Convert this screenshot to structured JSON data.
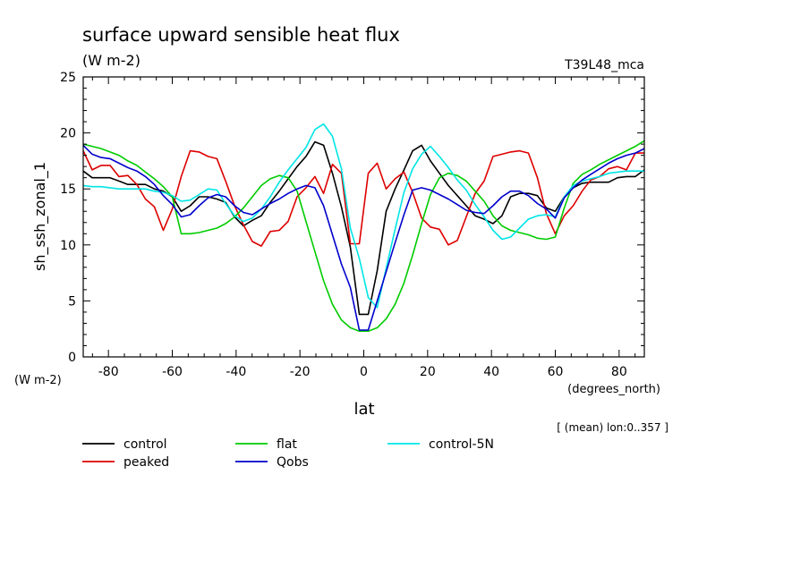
{
  "chart_data": {
    "type": "line",
    "title": "surface upward sensible heat flux",
    "units": "(W m-2)",
    "run_label": "T39L48_mca",
    "ylabel": "sh_ssh_zonal_1",
    "y_units": "(W m-2)",
    "xlabel": "lat",
    "x_units": "(degrees_north)",
    "note": "[ (mean) lon:0..357 ]",
    "xlim": [
      -87.9,
      87.9
    ],
    "ylim": [
      0,
      25
    ],
    "x_ticks": [
      -80,
      -60,
      -40,
      -20,
      0,
      20,
      40,
      60,
      80
    ],
    "y_ticks": [
      0,
      5,
      10,
      15,
      20,
      25
    ],
    "x_tick_labels": [
      "-80",
      "-60",
      "-40",
      "-20",
      "0",
      "20",
      "40",
      "60",
      "80"
    ],
    "y_tick_labels": [
      "0",
      "5",
      "10",
      "15",
      "20",
      "25"
    ],
    "x": [
      -87.9,
      -85.1,
      -82.3,
      -79.5,
      -76.7,
      -73.9,
      -71.1,
      -68.4,
      -65.6,
      -62.8,
      -60.0,
      -57.2,
      -54.4,
      -51.6,
      -48.8,
      -46.0,
      -43.3,
      -40.5,
      -37.7,
      -34.9,
      -32.1,
      -29.3,
      -26.5,
      -23.7,
      -20.9,
      -18.1,
      -15.3,
      -12.6,
      -9.8,
      -7.0,
      -4.2,
      -1.4,
      1.4,
      4.2,
      7.0,
      9.8,
      12.6,
      15.3,
      18.1,
      20.9,
      23.7,
      26.5,
      29.3,
      32.1,
      34.9,
      37.7,
      40.5,
      43.3,
      46.0,
      48.8,
      51.6,
      54.4,
      57.2,
      60.0,
      62.8,
      65.6,
      68.4,
      71.1,
      73.9,
      76.7,
      79.5,
      82.3,
      85.1,
      87.9
    ],
    "series": [
      {
        "name": "control",
        "color": "#000000",
        "values": [
          16.6,
          16.0,
          16.0,
          16.0,
          15.7,
          15.4,
          15.4,
          15.4,
          15.0,
          14.8,
          14.3,
          13.0,
          13.5,
          14.3,
          14.3,
          14.1,
          13.8,
          12.5,
          11.7,
          12.2,
          12.6,
          13.8,
          14.8,
          15.9,
          17.0,
          17.9,
          19.2,
          18.9,
          16.4,
          13.4,
          9.8,
          3.8,
          3.8,
          7.7,
          13.0,
          15.0,
          16.7,
          18.4,
          18.9,
          17.5,
          16.4,
          15.3,
          14.4,
          13.5,
          12.6,
          12.3,
          11.9,
          12.6,
          14.3,
          14.6,
          14.6,
          14.4,
          13.3,
          13.0,
          14.3,
          15.1,
          15.5,
          15.6,
          15.6,
          15.6,
          16.0,
          16.1,
          16.1,
          16.7
        ]
      },
      {
        "name": "peaked",
        "color": "#dd0000",
        "values": [
          18.4,
          16.7,
          17.1,
          17.1,
          16.1,
          16.2,
          15.4,
          14.1,
          13.4,
          11.3,
          13.2,
          16.1,
          18.4,
          18.3,
          17.9,
          17.7,
          15.7,
          13.5,
          11.8,
          10.3,
          9.9,
          11.2,
          11.3,
          12.1,
          14.3,
          15.1,
          16.1,
          14.6,
          17.2,
          16.4,
          10.1,
          10.1,
          16.4,
          17.3,
          15.0,
          15.9,
          16.5,
          14.7,
          12.4,
          11.6,
          11.4,
          10.0,
          10.4,
          12.5,
          14.6,
          15.7,
          17.9,
          18.1,
          18.3,
          18.4,
          18.2,
          16.0,
          12.8,
          11.0,
          12.6,
          13.5,
          14.8,
          15.8,
          16.1,
          16.8,
          17.0,
          16.7,
          18.2,
          18.2
        ]
      },
      {
        "name": "flat",
        "color": "#00cc00",
        "values": [
          19.0,
          18.8,
          18.6,
          18.3,
          18.0,
          17.5,
          17.1,
          16.5,
          15.9,
          15.2,
          14.3,
          11.0,
          11.0,
          11.1,
          11.3,
          11.5,
          11.9,
          12.5,
          13.3,
          14.3,
          15.3,
          15.9,
          16.2,
          16.0,
          14.8,
          12.1,
          9.4,
          6.8,
          4.7,
          3.3,
          2.6,
          2.3,
          2.3,
          2.6,
          3.4,
          4.7,
          6.6,
          9.1,
          11.9,
          14.5,
          16.0,
          16.4,
          16.2,
          15.7,
          14.8,
          13.9,
          12.6,
          11.7,
          11.3,
          11.1,
          10.9,
          10.6,
          10.5,
          10.7,
          13.3,
          15.5,
          16.3,
          16.7,
          17.2,
          17.6,
          18.0,
          18.4,
          18.8,
          19.3
        ]
      },
      {
        "name": "control-5N",
        "color": "#00e5e5",
        "values": [
          15.3,
          15.2,
          15.2,
          15.1,
          15.0,
          15.0,
          15.0,
          15.0,
          14.8,
          14.7,
          14.4,
          13.9,
          14.0,
          14.5,
          15.0,
          14.9,
          13.7,
          12.6,
          12.1,
          12.4,
          13.2,
          14.3,
          15.6,
          16.7,
          17.7,
          18.7,
          20.3,
          20.8,
          19.7,
          16.8,
          11.5,
          8.8,
          5.3,
          4.4,
          7.9,
          11.4,
          14.7,
          16.8,
          18.1,
          18.8,
          17.9,
          16.9,
          15.8,
          14.9,
          13.6,
          12.5,
          11.3,
          10.5,
          10.7,
          11.5,
          12.3,
          12.6,
          12.7,
          12.5,
          14.3,
          15.3,
          15.7,
          15.9,
          16.1,
          16.4,
          16.5,
          16.6,
          16.6,
          16.6
        ]
      },
      {
        "name": "Qobs",
        "color": "#0000cc",
        "values": [
          18.9,
          18.1,
          17.8,
          17.7,
          17.3,
          16.9,
          16.6,
          16.1,
          15.4,
          14.4,
          13.6,
          12.5,
          12.7,
          13.5,
          14.2,
          14.5,
          14.3,
          13.5,
          12.9,
          12.7,
          13.2,
          13.7,
          14.1,
          14.6,
          15.0,
          15.3,
          15.1,
          13.5,
          10.9,
          8.3,
          6.2,
          2.4,
          2.4,
          5.0,
          7.6,
          10.2,
          12.7,
          14.9,
          15.1,
          14.9,
          14.5,
          14.1,
          13.6,
          13.1,
          12.9,
          12.8,
          13.5,
          14.3,
          14.8,
          14.8,
          14.4,
          13.7,
          13.2,
          12.4,
          14.2,
          15.1,
          15.8,
          16.3,
          16.8,
          17.3,
          17.7,
          18.0,
          18.2,
          18.6
        ]
      }
    ],
    "legend": "bottom-left",
    "grid": false
  }
}
